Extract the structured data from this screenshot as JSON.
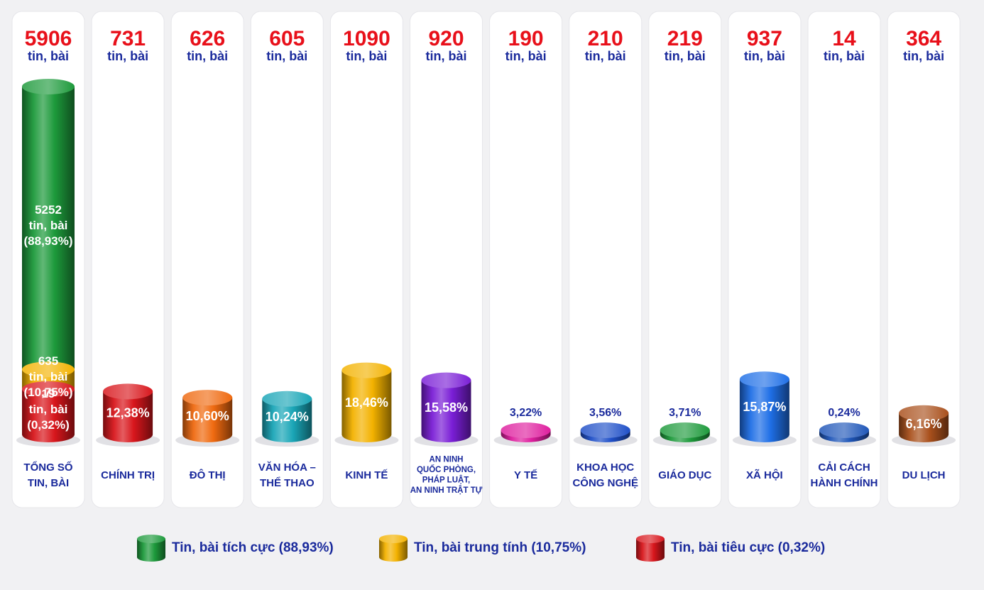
{
  "chart_data": {
    "type": "bar",
    "unit_label": "tin, bài",
    "total": {
      "category": "TỔNG SỐ\nTIN, BÀI",
      "value": 5906,
      "segments": [
        {
          "name": "positive",
          "value": 5252,
          "line1": "5252",
          "line2": "tin, bài",
          "line3": "(88,93%)"
        },
        {
          "name": "neutral",
          "value": 635,
          "line1": "635",
          "line2": "tin, bài",
          "line3": "(10,75%)"
        },
        {
          "name": "negative",
          "value": 19,
          "line1": "19",
          "line2": "tin, bài",
          "line3": "(0,32%)"
        }
      ]
    },
    "categories": [
      {
        "label": "CHÍNH TRỊ",
        "value": 731,
        "percent": 12.38,
        "percent_label": "12,38%",
        "color": "#d8161c"
      },
      {
        "label": "ĐÔ THỊ",
        "value": 626,
        "percent": 10.6,
        "percent_label": "10,60%",
        "color": "#ef6a10"
      },
      {
        "label": "VĂN HÓA –\nTHỂ THAO",
        "value": 605,
        "percent": 10.24,
        "percent_label": "10,24%",
        "color": "#1aa6b7"
      },
      {
        "label": "KINH TẾ",
        "value": 1090,
        "percent": 18.46,
        "percent_label": "18,46%",
        "color": "#f3b200"
      },
      {
        "label": "AN NINH\nQUỐC PHÒNG,\nPHÁP LUẬT,\nAN NINH TRẬT TỰ",
        "value": 920,
        "percent": 15.58,
        "percent_label": "15,58%",
        "color": "#7a1ed6"
      },
      {
        "label": "Y TẾ",
        "value": 190,
        "percent": 3.22,
        "percent_label": "3,22%",
        "color": "#de1e9e"
      },
      {
        "label": "KHOA HỌC\nCÔNG NGHỆ",
        "value": 210,
        "percent": 3.56,
        "percent_label": "3,56%",
        "color": "#1f4fc8"
      },
      {
        "label": "GIÁO DỤC",
        "value": 219,
        "percent": 3.71,
        "percent_label": "3,71%",
        "color": "#1d9a3b"
      },
      {
        "label": "XÃ HỘI",
        "value": 937,
        "percent": 15.87,
        "percent_label": "15,87%",
        "color": "#1f6fe6"
      },
      {
        "label": "CẢI CÁCH\nHÀNH CHÍNH",
        "value": 14,
        "percent": 0.24,
        "percent_label": "0,24%",
        "color": "#1f56b8"
      },
      {
        "label": "DU LỊCH",
        "value": 364,
        "percent": 6.16,
        "percent_label": "6,16%",
        "color": "#a9501c"
      }
    ],
    "colors": {
      "positive": "#1d9a3b",
      "neutral": "#f3b200",
      "negative": "#d8161c"
    },
    "legend": [
      {
        "key": "positive",
        "label": "Tin, bài tích cực (88,93%)",
        "color": "#1d9a3b"
      },
      {
        "key": "neutral",
        "label": "Tin, bài trung tính (10,75%)",
        "color": "#f3b200"
      },
      {
        "key": "negative",
        "label": "Tin, bài tiêu cực (0,32%)",
        "color": "#d8161c"
      }
    ]
  }
}
